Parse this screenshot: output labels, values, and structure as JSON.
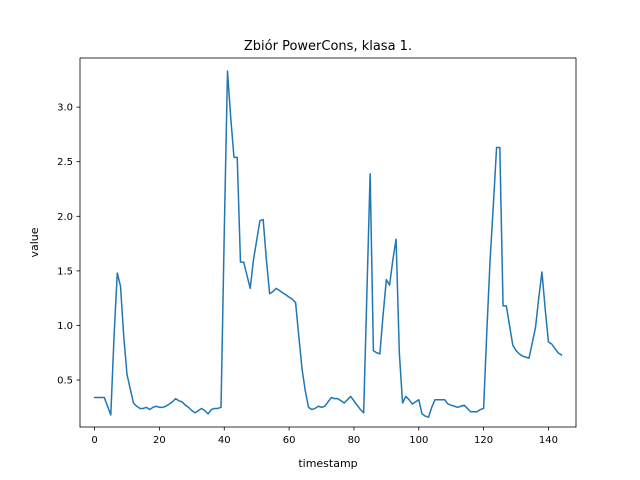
{
  "chart_data": {
    "type": "line",
    "title": "Zbiór PowerCons, klasa 1.",
    "xlabel": "timestamp",
    "ylabel": "value",
    "xlim": [
      -4.5,
      148.5
    ],
    "ylim": [
      0.07,
      3.45
    ],
    "xticks": [
      0,
      20,
      40,
      60,
      80,
      100,
      120,
      140
    ],
    "yticks": [
      0.5,
      1.0,
      1.5,
      2.0,
      2.5,
      3.0
    ],
    "ytick_labels": [
      "0.5",
      "1.0",
      "1.5",
      "2.0",
      "2.5",
      "3.0"
    ],
    "grid": false,
    "legend": "none",
    "series": [
      {
        "color": "#1f77b4",
        "x": [
          0,
          1,
          2,
          3,
          4,
          5,
          6,
          7,
          8,
          9,
          10,
          11,
          12,
          13,
          14,
          15,
          16,
          17,
          18,
          19,
          20,
          21,
          22,
          23,
          24,
          25,
          26,
          27,
          28,
          29,
          30,
          31,
          32,
          33,
          34,
          35,
          36,
          37,
          38,
          39,
          40,
          41,
          42,
          43,
          44,
          45,
          46,
          47,
          48,
          49,
          50,
          51,
          52,
          53,
          54,
          55,
          56,
          57,
          58,
          59,
          60,
          61,
          62,
          63,
          64,
          65,
          66,
          67,
          68,
          69,
          70,
          71,
          72,
          73,
          74,
          75,
          76,
          77,
          78,
          79,
          80,
          81,
          82,
          83,
          84,
          85,
          86,
          87,
          88,
          89,
          90,
          91,
          92,
          93,
          94,
          95,
          96,
          97,
          98,
          99,
          100,
          101,
          102,
          103,
          104,
          105,
          106,
          107,
          108,
          109,
          110,
          111,
          112,
          113,
          114,
          115,
          116,
          117,
          118,
          119,
          120,
          121,
          122,
          123,
          124,
          125,
          126,
          127,
          128,
          129,
          130,
          131,
          132,
          133,
          134,
          135,
          136,
          137,
          138,
          139,
          140,
          141,
          142,
          143,
          144
        ],
        "y": [
          0.34,
          0.34,
          0.34,
          0.34,
          0.26,
          0.18,
          0.9,
          1.48,
          1.36,
          0.9,
          0.55,
          0.42,
          0.29,
          0.26,
          0.24,
          0.24,
          0.25,
          0.23,
          0.25,
          0.26,
          0.25,
          0.25,
          0.26,
          0.28,
          0.3,
          0.33,
          0.31,
          0.3,
          0.27,
          0.25,
          0.22,
          0.2,
          0.22,
          0.24,
          0.22,
          0.19,
          0.23,
          0.24,
          0.24,
          0.25,
          1.85,
          3.33,
          2.9,
          2.54,
          2.54,
          1.58,
          1.58,
          1.46,
          1.34,
          1.6,
          1.78,
          1.96,
          1.97,
          1.6,
          1.29,
          1.31,
          1.34,
          1.32,
          1.3,
          1.28,
          1.26,
          1.24,
          1.21,
          0.9,
          0.6,
          0.4,
          0.25,
          0.23,
          0.24,
          0.26,
          0.25,
          0.26,
          0.3,
          0.34,
          0.33,
          0.33,
          0.31,
          0.29,
          0.32,
          0.35,
          0.31,
          0.27,
          0.23,
          0.2,
          1.3,
          2.39,
          0.77,
          0.75,
          0.74,
          1.1,
          1.42,
          1.37,
          1.6,
          1.79,
          0.75,
          0.29,
          0.35,
          0.32,
          0.28,
          0.3,
          0.32,
          0.19,
          0.17,
          0.16,
          0.25,
          0.32,
          0.32,
          0.32,
          0.32,
          0.28,
          0.27,
          0.26,
          0.25,
          0.26,
          0.27,
          0.24,
          0.21,
          0.21,
          0.21,
          0.23,
          0.24,
          0.95,
          1.6,
          2.1,
          2.63,
          2.63,
          1.18,
          1.18,
          1.0,
          0.82,
          0.77,
          0.74,
          0.72,
          0.71,
          0.7,
          0.84,
          0.98,
          1.25,
          1.49,
          1.15,
          0.85,
          0.83,
          0.79,
          0.75,
          0.73
        ]
      }
    ]
  }
}
